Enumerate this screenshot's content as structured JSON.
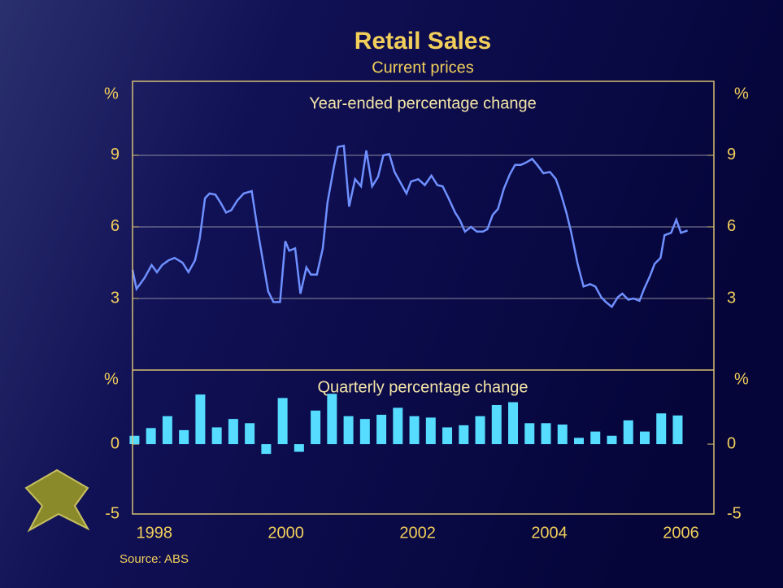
{
  "chart_data": [
    {
      "type": "line",
      "title": "Retail Sales",
      "subtitle": "Current prices",
      "panel_label": "Year-ended percentage change",
      "y_unit": "%",
      "color": "#6f90ff",
      "grid": true,
      "xlim": [
        1997.67,
        2006.5
      ],
      "ylim": [
        0,
        12.1
      ],
      "yticks": [
        3,
        6,
        9
      ],
      "x": [
        1997.67,
        1997.73,
        1997.85,
        1997.96,
        1998.04,
        1998.12,
        1998.22,
        1998.31,
        1998.43,
        1998.52,
        1998.62,
        1998.69,
        1998.77,
        1998.84,
        1998.93,
        1999.01,
        1999.09,
        1999.17,
        1999.26,
        1999.36,
        1999.48,
        1999.58,
        1999.73,
        1999.81,
        1999.91,
        1999.99,
        2000.05,
        2000.14,
        2000.22,
        2000.31,
        2000.38,
        2000.47,
        2000.56,
        2000.63,
        2000.72,
        2000.79,
        2000.88,
        2000.96,
        2001.05,
        2001.14,
        2001.22,
        2001.31,
        2001.4,
        2001.48,
        2001.57,
        2001.65,
        2001.83,
        2001.9,
        2002.01,
        2002.11,
        2002.21,
        2002.3,
        2002.38,
        2002.47,
        2002.57,
        2002.64,
        2002.72,
        2002.81,
        2002.9,
        2002.99,
        2003.06,
        2003.14,
        2003.22,
        2003.31,
        2003.4,
        2003.48,
        2003.57,
        2003.65,
        2003.74,
        2003.83,
        2003.91,
        2004.01,
        2004.1,
        2004.17,
        2004.26,
        2004.33,
        2004.43,
        2004.52,
        2004.62,
        2004.7,
        2004.79,
        2004.86,
        2004.95,
        2005.04,
        2005.11,
        2005.2,
        2005.28,
        2005.37,
        2005.44,
        2005.53,
        2005.6,
        2005.69,
        2005.75,
        2005.85,
        2005.93,
        2006.0,
        2006.1
      ],
      "values": [
        4.2,
        3.4,
        3.85,
        4.4,
        4.1,
        4.4,
        4.6,
        4.7,
        4.5,
        4.1,
        4.6,
        5.5,
        7.2,
        7.4,
        7.35,
        7.0,
        6.6,
        6.7,
        7.1,
        7.4,
        7.5,
        5.7,
        3.3,
        2.85,
        2.85,
        5.4,
        5.0,
        5.1,
        3.2,
        4.3,
        4.0,
        4.0,
        5.1,
        7.0,
        8.4,
        9.35,
        9.4,
        6.85,
        8.0,
        7.7,
        9.2,
        7.7,
        8.1,
        9.0,
        9.05,
        8.3,
        7.4,
        7.9,
        8.0,
        7.75,
        8.15,
        7.75,
        7.7,
        7.2,
        6.6,
        6.3,
        5.8,
        6.0,
        5.8,
        5.8,
        5.9,
        6.5,
        6.75,
        7.6,
        8.2,
        8.6,
        8.6,
        8.7,
        8.85,
        8.55,
        8.25,
        8.3,
        8.0,
        7.45,
        6.6,
        5.8,
        4.45,
        3.5,
        3.6,
        3.5,
        3.05,
        2.85,
        2.65,
        3.05,
        3.2,
        2.95,
        3.0,
        2.9,
        3.4,
        3.95,
        4.45,
        4.7,
        5.65,
        5.75,
        6.3,
        5.75,
        5.85
      ]
    },
    {
      "type": "bar",
      "panel_label": "Quarterly percentage change",
      "y_unit": "%",
      "color": "#55dcff",
      "source": "Source: ABS",
      "xlim": [
        1997.67,
        2006.5
      ],
      "ylim": [
        -5,
        5.3
      ],
      "yticks": [
        -5,
        0
      ],
      "xticks": [
        1998,
        2000,
        2002,
        2004,
        2006
      ],
      "x": [
        1997.7,
        1997.95,
        1998.2,
        1998.45,
        1998.7,
        1998.95,
        1999.2,
        1999.45,
        1999.7,
        1999.95,
        2000.2,
        2000.45,
        2000.7,
        2000.95,
        2001.2,
        2001.45,
        2001.7,
        2001.95,
        2002.2,
        2002.45,
        2002.7,
        2002.95,
        2003.2,
        2003.45,
        2003.7,
        2003.95,
        2004.2,
        2004.45,
        2004.7,
        2004.95,
        2005.2,
        2005.45,
        2005.7,
        2005.95
      ],
      "values": [
        0.6,
        1.15,
        2.0,
        1.0,
        3.55,
        1.2,
        1.8,
        1.5,
        -0.7,
        3.3,
        -0.55,
        2.4,
        3.6,
        2.0,
        1.8,
        2.1,
        2.6,
        2.0,
        1.9,
        1.2,
        1.35,
        2.0,
        2.8,
        3.0,
        1.5,
        1.5,
        1.4,
        0.45,
        0.9,
        0.6,
        1.7,
        0.9,
        2.2,
        2.05
      ]
    }
  ]
}
